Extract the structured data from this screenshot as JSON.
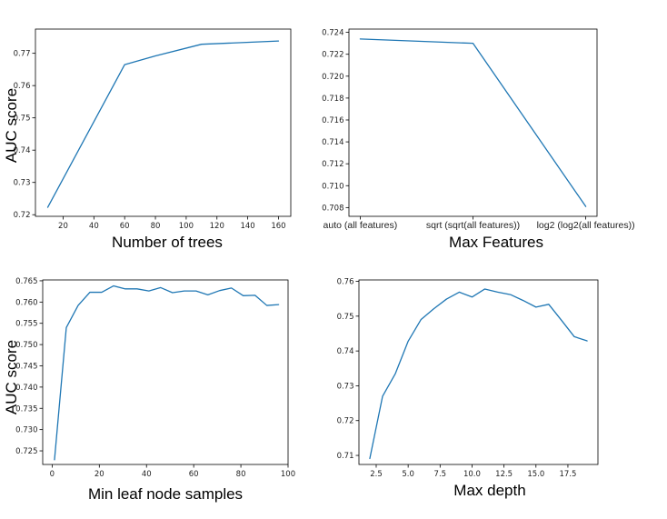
{
  "chart_data": [
    {
      "type": "line",
      "xlabel": "Number of trees",
      "ylabel": "AUC score",
      "x_scale": "linear",
      "xlim": [
        2,
        168
      ],
      "ylim": [
        0.7195,
        0.7775
      ],
      "xticks": [
        20,
        40,
        60,
        80,
        100,
        120,
        140,
        160
      ],
      "xtick_labels": [
        "20",
        "40",
        "60",
        "80",
        "100",
        "120",
        "140",
        "160"
      ],
      "yticks": [
        0.72,
        0.73,
        0.74,
        0.75,
        0.76,
        0.77
      ],
      "ytick_labels": [
        "0.72",
        "0.73",
        "0.74",
        "0.75",
        "0.76",
        "0.77"
      ],
      "grid": false,
      "series": [
        {
          "color": "#1f77b4",
          "x": [
            10,
            60,
            80,
            110,
            160
          ],
          "y": [
            0.7223,
            0.7665,
            0.7692,
            0.7728,
            0.7738
          ]
        }
      ]
    },
    {
      "type": "line",
      "xlabel": "Max Features",
      "ylabel": "",
      "x_scale": "categorical",
      "xlim": [
        -0.1,
        2.1
      ],
      "ylim": [
        0.7072,
        0.7243
      ],
      "categories": [
        "auto (all features)",
        "sqrt (sqrt(all features))",
        "log2 (log2(all features))"
      ],
      "yticks": [
        0.708,
        0.71,
        0.712,
        0.714,
        0.716,
        0.718,
        0.72,
        0.722,
        0.724
      ],
      "ytick_labels": [
        "0.708",
        "0.710",
        "0.712",
        "0.714",
        "0.716",
        "0.718",
        "0.720",
        "0.722",
        "0.724"
      ],
      "grid": false,
      "series": [
        {
          "color": "#1f77b4",
          "values": [
            0.7234,
            0.723,
            0.7081
          ]
        }
      ]
    },
    {
      "type": "line",
      "xlabel": "Min leaf node samples",
      "ylabel": "AUC score",
      "x_scale": "linear",
      "xlim": [
        -4,
        100
      ],
      "ylim": [
        0.7218,
        0.7652
      ],
      "xticks": [
        0,
        20,
        40,
        60,
        80,
        100
      ],
      "xtick_labels": [
        "0",
        "20",
        "40",
        "60",
        "80",
        "100"
      ],
      "yticks": [
        0.725,
        0.73,
        0.735,
        0.74,
        0.745,
        0.75,
        0.755,
        0.76,
        0.765
      ],
      "ytick_labels": [
        "0.725",
        "0.730",
        "0.735",
        "0.740",
        "0.745",
        "0.750",
        "0.755",
        "0.760",
        "0.765"
      ],
      "grid": false,
      "series": [
        {
          "color": "#1f77b4",
          "x": [
            1,
            6,
            11,
            16,
            21,
            26,
            31,
            36,
            41,
            46,
            51,
            56,
            61,
            66,
            71,
            76,
            81,
            86,
            91,
            96
          ],
          "y": [
            0.7229,
            0.754,
            0.7592,
            0.7623,
            0.7623,
            0.7638,
            0.7631,
            0.7631,
            0.7626,
            0.7634,
            0.7622,
            0.7626,
            0.7626,
            0.7617,
            0.7627,
            0.7633,
            0.7615,
            0.7616,
            0.7592,
            0.7594
          ]
        }
      ]
    },
    {
      "type": "line",
      "xlabel": "Max depth",
      "ylabel": "",
      "x_scale": "linear",
      "xlim": [
        1.15,
        19.85
      ],
      "ylim": [
        0.7074,
        0.7604
      ],
      "xticks": [
        2.5,
        5.0,
        7.5,
        10.0,
        12.5,
        15.0,
        17.5
      ],
      "xtick_labels": [
        "2.5",
        "5.0",
        "7.5",
        "10.0",
        "12.5",
        "15.0",
        "17.5"
      ],
      "yticks": [
        0.71,
        0.72,
        0.73,
        0.74,
        0.75,
        0.76
      ],
      "ytick_labels": [
        "0.71",
        "0.72",
        "0.73",
        "0.74",
        "0.75",
        "0.76"
      ],
      "grid": false,
      "series": [
        {
          "color": "#1f77b4",
          "x": [
            2,
            3,
            4,
            5,
            6,
            7,
            8,
            9,
            10,
            11,
            12,
            13,
            14,
            15,
            16,
            17,
            18,
            19
          ],
          "y": [
            0.7091,
            0.727,
            0.7335,
            0.7428,
            0.749,
            0.7521,
            0.7549,
            0.7569,
            0.7555,
            0.7578,
            0.7569,
            0.7562,
            0.7545,
            0.7526,
            0.7534,
            0.7488,
            0.7441,
            0.7429
          ]
        }
      ]
    }
  ]
}
